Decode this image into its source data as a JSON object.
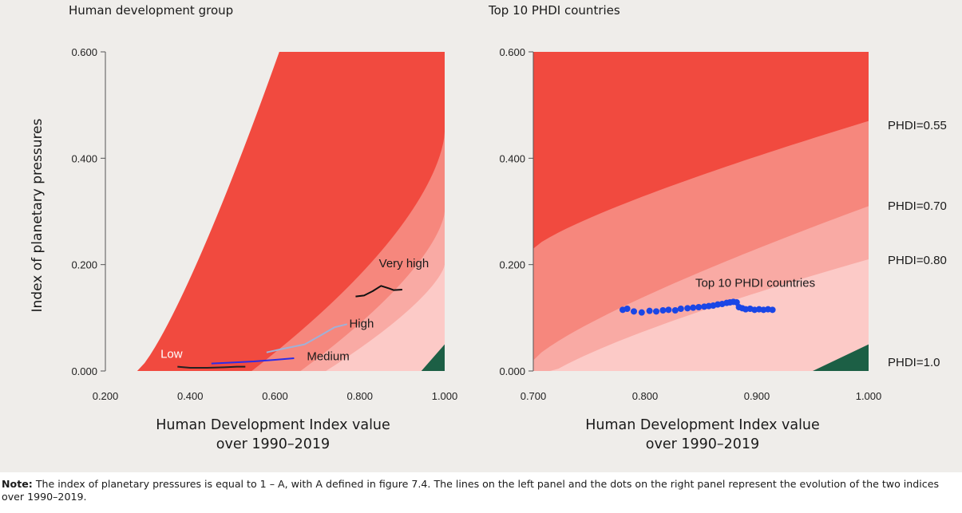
{
  "note": {
    "label": "Note:",
    "text": "The index of planetary pressures is equal to 1 – A, with A defined in figure 7.4. The lines on the left panel and the dots on the right panel represent the evolution of the two indices over 1990–2019."
  },
  "colors": {
    "background": "#efedea",
    "red_outer": "#f14a3f",
    "band_055_070": "#f6877d",
    "band_070_080": "#f9aaa4",
    "band_080_100": "#fccac7",
    "above_100": "#1c5f45",
    "low": "#222222",
    "medium": "#2c2ce6",
    "high": "#9fb1d8",
    "very_high": "#111111",
    "dots": "#1a46e6"
  },
  "chart_data": [
    {
      "type": "line",
      "title": "Human development group",
      "xlabel_lines": [
        "Human Development Index value",
        "over 1990–2019"
      ],
      "ylabel": "Index of planetary pressures",
      "xlim": [
        0.2,
        1.0
      ],
      "ylim": [
        0.0,
        0.6
      ],
      "xticks": [
        "0.200",
        "0.400",
        "0.600",
        "0.800",
        "1.000"
      ],
      "yticks": [
        "0.000",
        "0.200",
        "0.400",
        "0.600"
      ],
      "grid": false,
      "series": [
        {
          "name": "Low",
          "label_at": [
            0.33,
            0.025
          ],
          "x": [
            0.37,
            0.4,
            0.44,
            0.48,
            0.51,
            0.53
          ],
          "y": [
            0.008,
            0.006,
            0.006,
            0.007,
            0.008,
            0.008
          ]
        },
        {
          "name": "Medium",
          "label_at": [
            0.675,
            0.02
          ],
          "x": [
            0.45,
            0.5,
            0.55,
            0.6,
            0.645
          ],
          "y": [
            0.014,
            0.016,
            0.018,
            0.021,
            0.024
          ]
        },
        {
          "name": "High",
          "label_at": [
            0.775,
            0.082
          ],
          "x": [
            0.58,
            0.62,
            0.67,
            0.71,
            0.74,
            0.77
          ],
          "y": [
            0.035,
            0.042,
            0.05,
            0.068,
            0.082,
            0.088
          ]
        },
        {
          "name": "Very high",
          "label_at": [
            0.845,
            0.195
          ],
          "x": [
            0.79,
            0.81,
            0.83,
            0.85,
            0.87,
            0.88,
            0.9
          ],
          "y": [
            0.14,
            0.142,
            0.15,
            0.16,
            0.155,
            0.152,
            0.153
          ]
        }
      ]
    },
    {
      "type": "scatter",
      "title": "Top 10 PHDI countries",
      "xlabel_lines": [
        "Human Development Index value",
        "over 1990–2019"
      ],
      "xlim": [
        0.7,
        1.0
      ],
      "ylim": [
        0.0,
        0.6
      ],
      "xticks": [
        "0.700",
        "0.800",
        "0.900",
        "1.000"
      ],
      "yticks": [
        "0.000",
        "0.200",
        "0.400",
        "0.600"
      ],
      "grid": false,
      "annotation": {
        "text": "Top 10 PHDI countries",
        "at": [
          0.845,
          0.158
        ]
      },
      "series": [
        {
          "name": "Top 10 PHDI countries",
          "x": [
            0.78,
            0.784,
            0.79,
            0.797,
            0.804,
            0.81,
            0.816,
            0.821,
            0.827,
            0.832,
            0.838,
            0.843,
            0.848,
            0.853,
            0.857,
            0.861,
            0.865,
            0.869,
            0.873,
            0.876,
            0.879,
            0.882,
            0.884,
            0.887,
            0.89,
            0.894,
            0.898,
            0.902,
            0.906,
            0.91,
            0.914
          ],
          "y": [
            0.115,
            0.117,
            0.112,
            0.11,
            0.113,
            0.112,
            0.114,
            0.115,
            0.114,
            0.117,
            0.118,
            0.119,
            0.12,
            0.121,
            0.122,
            0.123,
            0.125,
            0.126,
            0.128,
            0.129,
            0.13,
            0.129,
            0.12,
            0.118,
            0.116,
            0.117,
            0.115,
            0.116,
            0.115,
            0.116,
            0.115
          ]
        }
      ]
    }
  ],
  "contours": {
    "labels": [
      "PHDI=0.55",
      "PHDI=0.70",
      "PHDI=0.80",
      "PHDI=1.0"
    ],
    "levels": [
      0.55,
      0.7,
      0.8,
      1.0
    ]
  }
}
